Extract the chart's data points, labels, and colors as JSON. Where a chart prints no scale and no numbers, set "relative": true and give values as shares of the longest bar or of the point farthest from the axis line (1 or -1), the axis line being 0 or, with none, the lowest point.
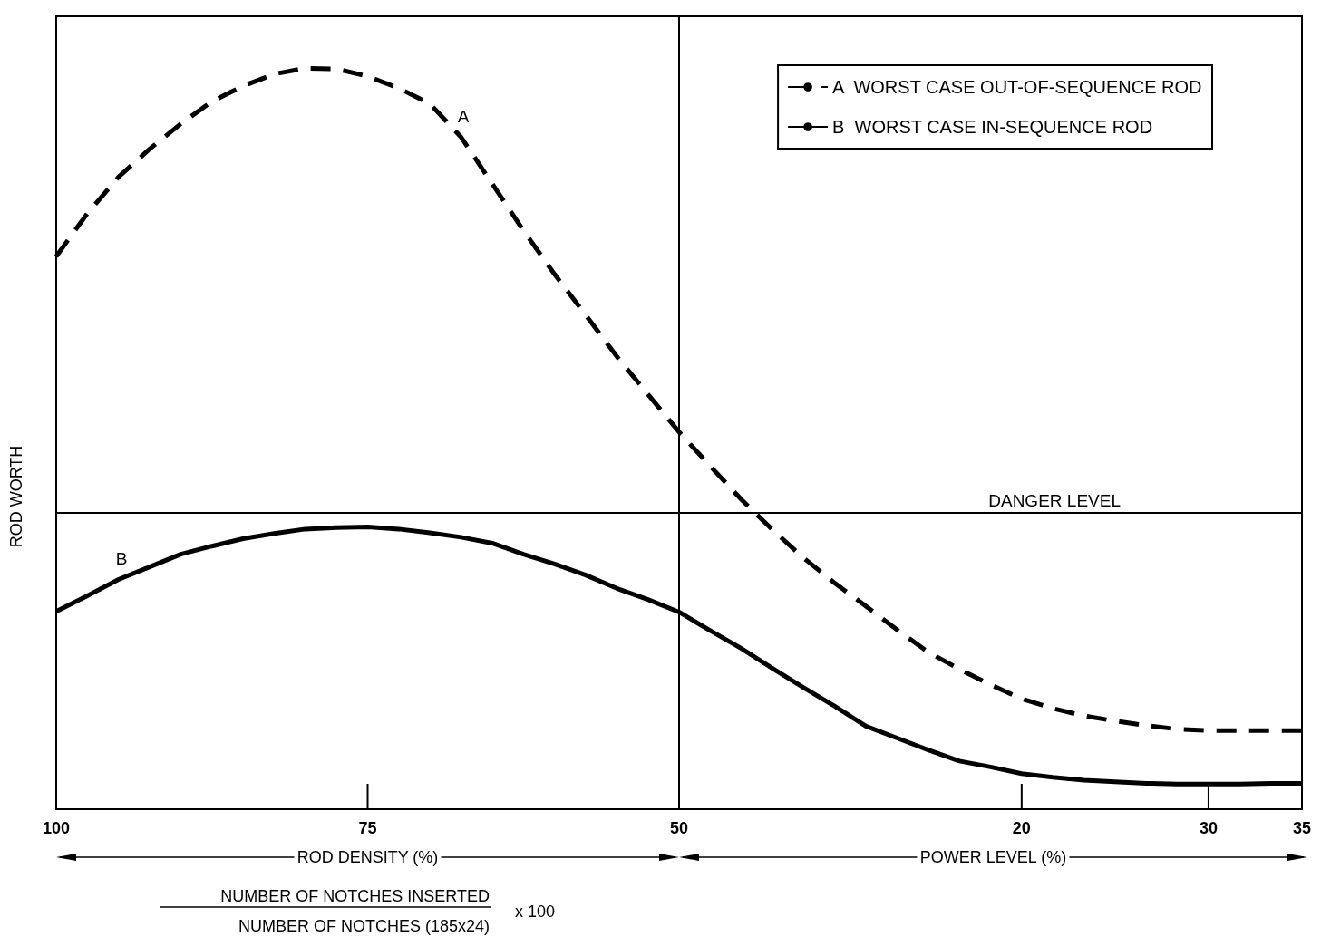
{
  "chart_data": {
    "type": "line",
    "relative": true,
    "ylabel": "ROD WORTH",
    "legend": "top right",
    "grid": false,
    "categories": [
      "100",
      null,
      null,
      null,
      null,
      null,
      null,
      null,
      null,
      null,
      "75",
      null,
      null,
      null,
      null,
      null,
      null,
      null,
      null,
      null,
      "50",
      null,
      null,
      null,
      null,
      null,
      null,
      null,
      null,
      null,
      null,
      "20",
      null,
      null,
      null,
      null,
      null,
      "30",
      null,
      null,
      "35"
    ],
    "series": [
      {
        "name": "A  WORST CASE OUT-OF-SEQUENCE ROD",
        "color": "#000000",
        "line_style": "dashed",
        "values": [
          0.746,
          0.804,
          0.853,
          0.891,
          0.925,
          0.955,
          0.976,
          0.992,
          1,
          0.999,
          0.989,
          0.973,
          0.952,
          0.907,
          0.844,
          0.781,
          0.722,
          0.667,
          0.611,
          0.56,
          0.509,
          0.463,
          0.418,
          0.377,
          0.339,
          0.305,
          0.274,
          0.242,
          0.212,
          0.189,
          0.168,
          0.149,
          0.136,
          0.126,
          0.119,
          0.113,
          0.108,
          0.106,
          0.106,
          0.106,
          0.106
        ]
      },
      {
        "name": "B  WORST CASE IN-SEQUENCE ROD",
        "color": "#000000",
        "line_style": "solid",
        "values": [
          0.267,
          0.288,
          0.31,
          0.327,
          0.344,
          0.355,
          0.365,
          0.372,
          0.378,
          0.38,
          0.381,
          0.378,
          0.373,
          0.367,
          0.359,
          0.344,
          0.331,
          0.316,
          0.298,
          0.283,
          0.266,
          0.241,
          0.217,
          0.19,
          0.164,
          0.139,
          0.112,
          0.096,
          0.08,
          0.065,
          0.057,
          0.048,
          0.043,
          0.039,
          0.037,
          0.035,
          0.034,
          0.034,
          0.034,
          0.035,
          0.035
        ]
      }
    ],
    "ref_lines": [
      {
        "axis": "y",
        "value": 0.401,
        "label": "DANGER LEVEL",
        "color": "#000000"
      },
      {
        "axis": "x",
        "value": "50",
        "label": null,
        "color": "#000000"
      }
    ],
    "annotations": [
      "ROD DENSITY (%)",
      "POWER LEVEL (%)",
      "NUMBER OF NOTCHES INSERTED",
      "NUMBER OF NOTCHES (185x24)",
      "x 100",
      "A",
      "B"
    ]
  }
}
